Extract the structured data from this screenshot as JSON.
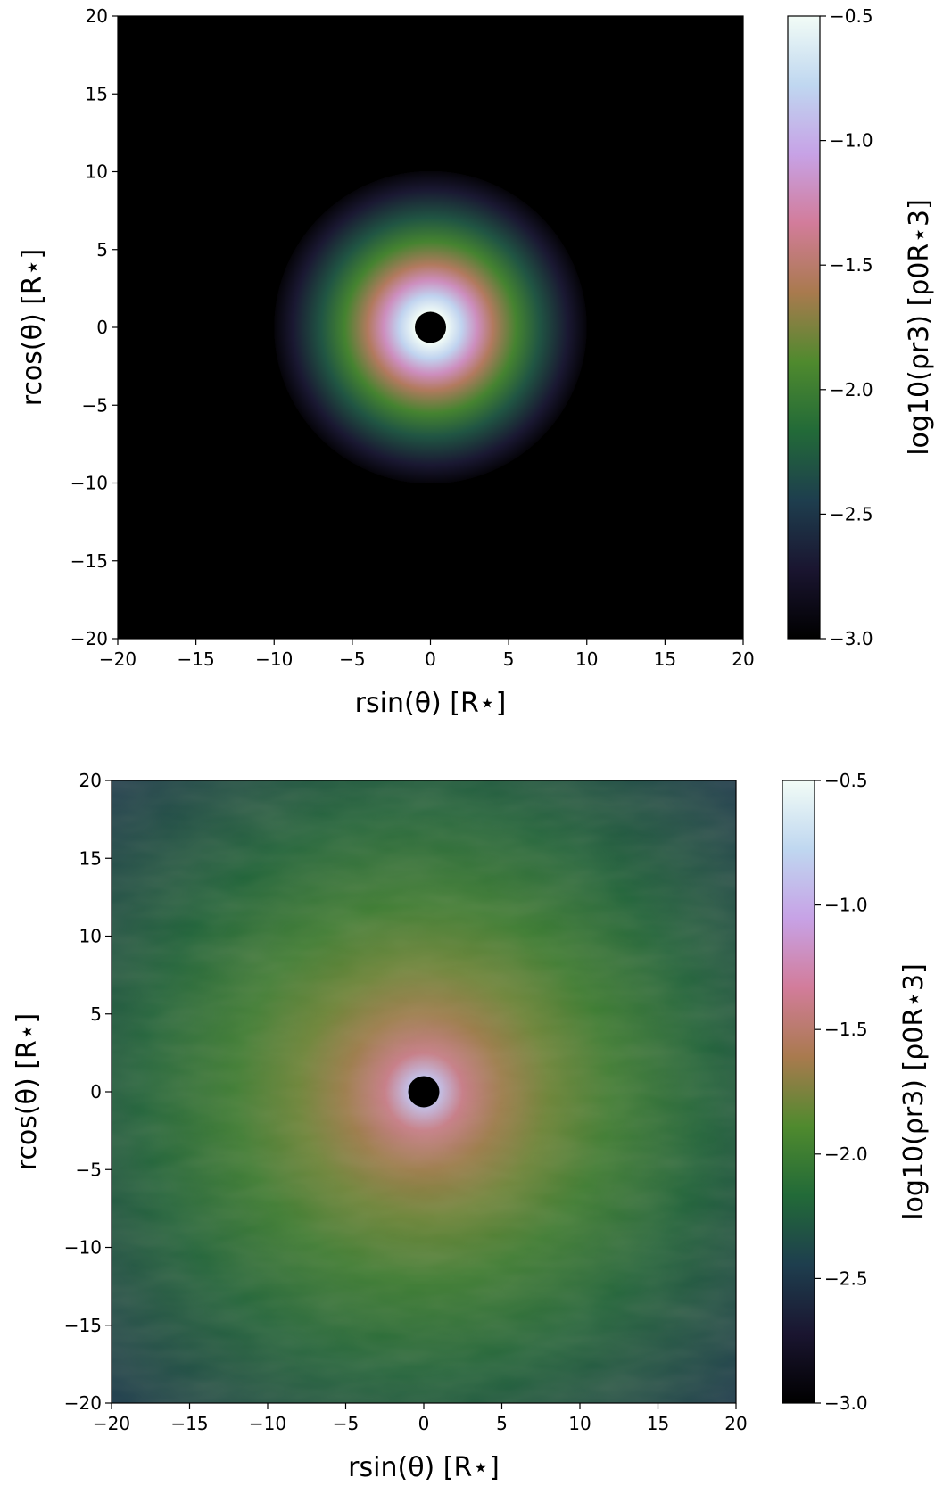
{
  "chart_data": [
    {
      "type": "heatmap",
      "panel": "top",
      "xlabel": "rsin(θ) [R⋆]",
      "ylabel": "rcos(θ) [R⋆]",
      "colorbar_label": "log10(ρr3) [ρ0R⋆3]",
      "xlim": [
        -20,
        20
      ],
      "ylim": [
        -20,
        20
      ],
      "clim": [
        -3.0,
        -0.5
      ],
      "x_ticks": [
        "−20",
        "−15",
        "−10",
        "−5",
        "0",
        "5",
        "10",
        "15",
        "20"
      ],
      "y_ticks": [
        "20",
        "15",
        "10",
        "5",
        "0",
        "−5",
        "−10",
        "−15",
        "−20"
      ],
      "colorbar_ticks": [
        "−0.5",
        "−1.0",
        "−1.5",
        "−2.0",
        "−2.5",
        "−3.0"
      ],
      "colormap": "cubehelix",
      "radial_profile": [
        {
          "r": 1.0,
          "value": -0.5
        },
        {
          "r": 2.0,
          "value": -0.8
        },
        {
          "r": 3.0,
          "value": -1.2
        },
        {
          "r": 4.0,
          "value": -1.55
        },
        {
          "r": 5.5,
          "value": -1.95
        },
        {
          "r": 7.0,
          "value": -2.3
        },
        {
          "r": 8.8,
          "value": -2.7
        },
        {
          "r": 10.0,
          "value": -2.95
        },
        {
          "r": 20.0,
          "value": -3.0
        }
      ],
      "inner_hole_radius": 1.0
    },
    {
      "type": "heatmap",
      "panel": "bottom",
      "xlabel": "rsin(θ) [R⋆]",
      "ylabel": "rcos(θ) [R⋆]",
      "colorbar_label": "log10(ρr3) [ρ0R⋆3]",
      "xlim": [
        -20,
        20
      ],
      "ylim": [
        -20,
        20
      ],
      "clim": [
        -3.0,
        -0.5
      ],
      "x_ticks": [
        "−20",
        "−15",
        "−10",
        "−5",
        "0",
        "5",
        "10",
        "15",
        "20"
      ],
      "y_ticks": [
        "20",
        "15",
        "10",
        "5",
        "0",
        "−5",
        "−10",
        "−15",
        "−20"
      ],
      "colorbar_ticks": [
        "−0.5",
        "−1.0",
        "−1.5",
        "−2.0",
        "−2.5",
        "−3.0"
      ],
      "colormap": "cubehelix",
      "radial_profile": [
        {
          "r": 1.0,
          "value": -0.9
        },
        {
          "r": 2.5,
          "value": -1.4
        },
        {
          "r": 5.0,
          "value": -1.65
        },
        {
          "r": 8.0,
          "value": -1.8
        },
        {
          "r": 12.0,
          "value": -2.0
        },
        {
          "r": 18.0,
          "value": -2.2
        },
        {
          "r": 28.0,
          "value": -2.45
        }
      ],
      "inner_hole_radius": 1.0
    }
  ],
  "colors": {
    "colormap_stops": [
      "#000000",
      "#1a1530",
      "#1e3e4e",
      "#226a38",
      "#4f8a2e",
      "#a97a4e",
      "#d27c9a",
      "#c7a2e6",
      "#bfd7f0",
      "#f2fcf6"
    ],
    "background": "#ffffff",
    "hole": "#000000"
  }
}
